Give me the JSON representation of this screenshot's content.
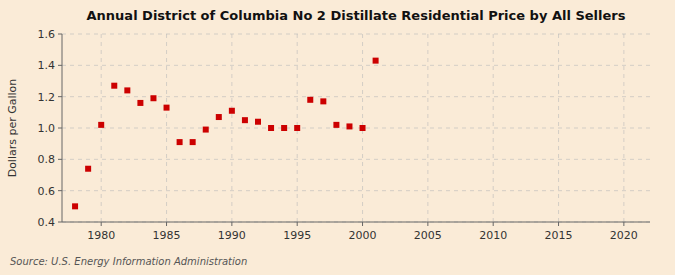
{
  "chart_data": {
    "type": "scatter",
    "title": "Annual District of Columbia No 2 Distillate Residential Price by All Sellers",
    "ylabel": "Dollars per Gallon",
    "source": "Source: U.S. Energy Information Administration",
    "color": "#cc0000",
    "marker": "square",
    "x": [
      1978,
      1979,
      1980,
      1981,
      1982,
      1983,
      1984,
      1985,
      1986,
      1987,
      1988,
      1989,
      1990,
      1991,
      1992,
      1993,
      1994,
      1995,
      1996,
      1997,
      1998,
      1999,
      2000,
      2001
    ],
    "values": [
      0.5,
      0.74,
      1.02,
      1.27,
      1.24,
      1.16,
      1.19,
      1.13,
      0.91,
      0.91,
      0.99,
      1.07,
      1.11,
      1.05,
      1.04,
      1.0,
      1.0,
      1.0,
      1.18,
      1.17,
      1.02,
      1.01,
      1.0,
      1.43
    ],
    "xlim": [
      1977,
      2022
    ],
    "ylim": [
      0.4,
      1.6
    ],
    "xticks": [
      1980,
      1985,
      1990,
      1995,
      2000,
      2005,
      2010,
      2015,
      2020
    ],
    "yticks": [
      0.4,
      0.6,
      0.8,
      {
        "value": 1.0,
        "label": "1.0"
      },
      1.2,
      1.4,
      1.6
    ],
    "grid": true
  }
}
